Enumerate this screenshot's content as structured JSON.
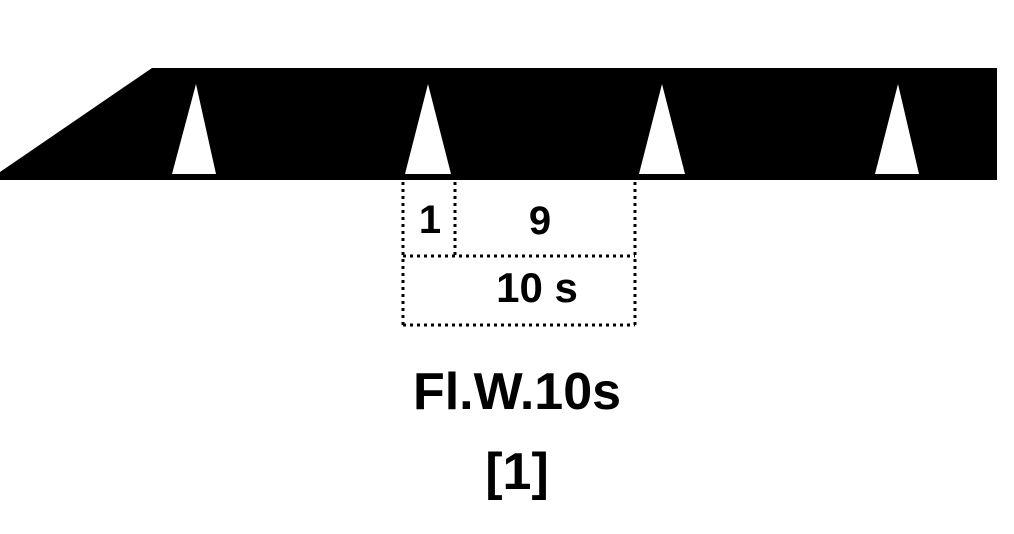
{
  "diagram": {
    "flashes_shown": 4,
    "labels": {
      "flash_duration": "1",
      "dark_duration": "9",
      "period": "10 s"
    },
    "caption": {
      "character": "Fl.W.10s",
      "range": "[1]"
    },
    "colors": {
      "light_band": "#000000",
      "flash": "#ffffff",
      "background": "#ffffff"
    }
  }
}
